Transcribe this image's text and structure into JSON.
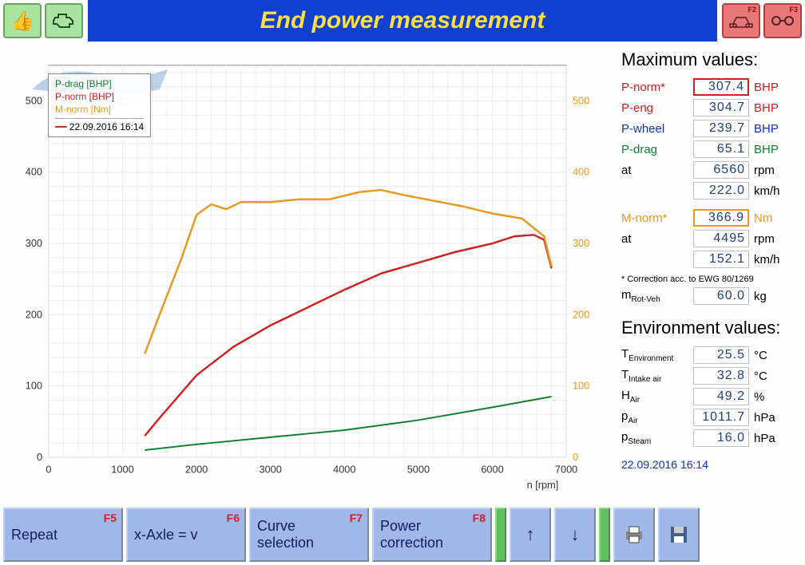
{
  "toolbar": {
    "title": "End power measurement",
    "right_buttons": [
      {
        "fkey": "F2",
        "icon": "car"
      },
      {
        "fkey": "F3",
        "icon": "chain"
      }
    ]
  },
  "chart": {
    "type": "line",
    "xlabel": "n [rpm]",
    "xlim": [
      0,
      7000
    ],
    "xtick_step": 1000,
    "ylim_left": [
      0,
      550
    ],
    "ytick_step_left": 100,
    "ylim_right": [
      0,
      550
    ],
    "grid_color": "#d0d0d0",
    "background": "#ffffff",
    "series": [
      {
        "name": "P-drag [BHP]",
        "color": "#108030",
        "width": 2,
        "x": [
          1300,
          2000,
          3000,
          4000,
          5000,
          6000,
          6800
        ],
        "y": [
          10,
          18,
          28,
          38,
          52,
          70,
          85
        ]
      },
      {
        "name": "P-norm [BHP]",
        "color": "#d02020",
        "width": 2.5,
        "x": [
          1300,
          1500,
          2000,
          2500,
          3000,
          3500,
          4000,
          4500,
          5000,
          5500,
          6000,
          6300,
          6560,
          6700,
          6800
        ],
        "y": [
          30,
          55,
          115,
          155,
          185,
          210,
          235,
          258,
          273,
          288,
          300,
          310,
          312,
          305,
          265
        ]
      },
      {
        "name": "M-norm [Nm]",
        "color": "#e89820",
        "width": 2.5,
        "x": [
          1300,
          1500,
          1800,
          2000,
          2200,
          2400,
          2600,
          3000,
          3400,
          3800,
          4200,
          4495,
          4800,
          5200,
          5600,
          6000,
          6400,
          6700,
          6800
        ],
        "y": [
          145,
          200,
          280,
          340,
          355,
          348,
          358,
          358,
          362,
          362,
          372,
          375,
          368,
          360,
          352,
          342,
          335,
          310,
          268
        ]
      }
    ],
    "legend": {
      "items": [
        "P-drag [BHP]",
        "P-norm [BHP]",
        "M-norm [Nm]"
      ],
      "timestamp": "22.09.2016 16:14"
    },
    "watermark_text": "PKE",
    "watermark_color": "#4080c0"
  },
  "max_values": {
    "heading": "Maximum values:",
    "rows": [
      {
        "label": "P-norm*",
        "value": "307.4",
        "unit": "BHP",
        "color": "red",
        "highlight": "red"
      },
      {
        "label": "P-eng",
        "value": "304.7",
        "unit": "BHP",
        "color": "red"
      },
      {
        "label": "P-wheel",
        "value": "239.7",
        "unit": "BHP",
        "color": "blue"
      },
      {
        "label": "P-drag",
        "value": "65.1",
        "unit": "BHP",
        "color": "green"
      },
      {
        "label": "at",
        "value": "6560",
        "unit": "rpm",
        "color": "black"
      },
      {
        "label": "",
        "value": "222.0",
        "unit": "km/h",
        "color": "black"
      }
    ],
    "torque_rows": [
      {
        "label": "M-norm*",
        "value": "366.9",
        "unit": "Nm",
        "color": "orange",
        "highlight": "org"
      },
      {
        "label": "at",
        "value": "4495",
        "unit": "rpm",
        "color": "black"
      },
      {
        "label": "",
        "value": "152.1",
        "unit": "km/h",
        "color": "black"
      }
    ],
    "note": "* Correction acc. to EWG 80/1269",
    "mass": {
      "label": "m",
      "sub": "Rot-Veh",
      "value": "60.0",
      "unit": "kg"
    }
  },
  "env_values": {
    "heading": "Environment values:",
    "rows": [
      {
        "label": "T",
        "sub": "Environment",
        "value": "25.5",
        "unit": "°C"
      },
      {
        "label": "T",
        "sub": "Intake air",
        "value": "32.8",
        "unit": "°C"
      },
      {
        "label": "H",
        "sub": "Air",
        "value": "49.2",
        "unit": "%"
      },
      {
        "label": "p",
        "sub": "Air",
        "value": "1011.7",
        "unit": "hPa"
      },
      {
        "label": "p",
        "sub": "Steam",
        "value": "16.0",
        "unit": "hPa"
      }
    ]
  },
  "timestamp": "22.09.2016  16:14",
  "bottom_buttons": [
    {
      "label": "Repeat",
      "fkey": "F5",
      "class": "wide"
    },
    {
      "label": "x-Axle = v",
      "fkey": "F6",
      "class": "wide"
    },
    {
      "label": "Curve\nselection",
      "fkey": "F7",
      "class": "wide"
    },
    {
      "label": "Power\ncorrection",
      "fkey": "F8",
      "class": "wide"
    },
    {
      "sep": true
    },
    {
      "icon": "↑",
      "class": "small"
    },
    {
      "icon": "↓",
      "class": "small"
    },
    {
      "sep": true
    },
    {
      "icon": "print",
      "class": "small"
    },
    {
      "icon": "disk",
      "class": "small"
    }
  ]
}
